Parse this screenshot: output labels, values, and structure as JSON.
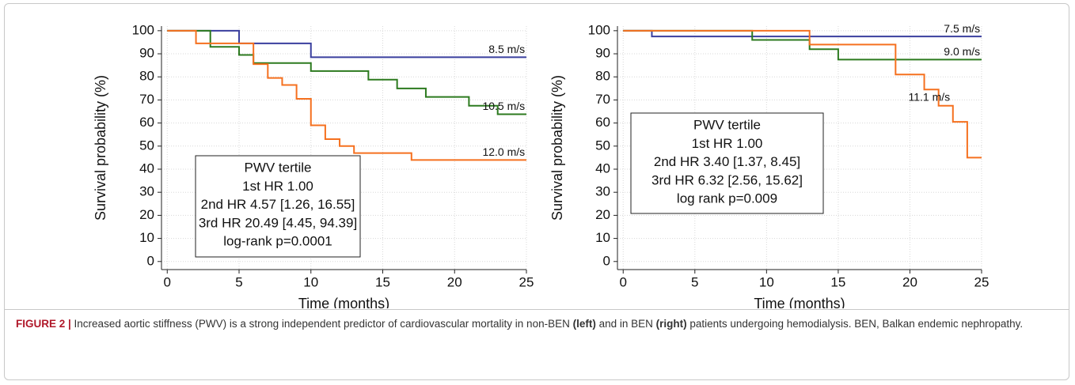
{
  "chart_data": [
    {
      "type": "line",
      "step": true,
      "xlabel": "Time (months)",
      "ylabel": "Survival probability (%)",
      "xlim": [
        -0.4,
        25
      ],
      "ylim": [
        -3.5,
        102
      ],
      "xticks": [
        0,
        5,
        10,
        15,
        20,
        25
      ],
      "yticks": [
        0,
        10,
        20,
        30,
        40,
        50,
        60,
        70,
        80,
        90,
        100
      ],
      "grid": true,
      "annotation": [
        "PWV tertile",
        "1st HR 1.00",
        "2nd HR 4.57 [1.26, 16.55]",
        "3rd HR 20.49 [4.45, 94.39]",
        "log-rank p=0.0001"
      ],
      "series": [
        {
          "name": "8.5 m/s",
          "color": "#3a3f9e",
          "x": [
            0,
            5,
            5,
            10,
            10,
            25
          ],
          "values": [
            100,
            100,
            94.5,
            94.5,
            88.5,
            88.5
          ]
        },
        {
          "name": "10.5 m/s",
          "color": "#2c7a1f",
          "x": [
            0,
            3,
            3,
            5,
            5,
            6,
            6,
            10,
            10,
            14,
            14,
            16,
            16,
            18,
            18,
            21,
            21,
            23,
            23,
            25
          ],
          "values": [
            100,
            100,
            93,
            93,
            89.5,
            89.5,
            86,
            86,
            82.5,
            82.5,
            78.8,
            78.8,
            75,
            75,
            71.3,
            71.3,
            67.5,
            67.5,
            63.8,
            63.8
          ]
        },
        {
          "name": "12.0 m/s",
          "color": "#f5701f",
          "x": [
            0,
            2,
            2,
            6,
            6,
            7,
            7,
            8,
            8,
            9,
            9,
            10,
            10,
            11,
            11,
            12,
            12,
            13,
            13,
            17,
            17,
            25
          ],
          "values": [
            100,
            100,
            94.5,
            94.5,
            85.5,
            85.5,
            79.5,
            79.5,
            76.5,
            76.5,
            70.5,
            70.5,
            59,
            59,
            53,
            53,
            50,
            50,
            47,
            47,
            44,
            44
          ]
        }
      ]
    },
    {
      "type": "line",
      "step": true,
      "xlabel": "Time (months)",
      "ylabel": "Survival probability (%)",
      "xlim": [
        -0.4,
        25
      ],
      "ylim": [
        -3.5,
        102
      ],
      "xticks": [
        0,
        5,
        10,
        15,
        20,
        25
      ],
      "yticks": [
        0,
        10,
        20,
        30,
        40,
        50,
        60,
        70,
        80,
        90,
        100
      ],
      "grid": true,
      "annotation": [
        "PWV tertile",
        "1st HR 1.00",
        "2nd HR 3.40 [1.37, 8.45]",
        "3rd HR 6.32 [2.56, 15.62]",
        "log rank p=0.009"
      ],
      "series": [
        {
          "name": "7.5 m/s",
          "color": "#3a3f9e",
          "x": [
            0,
            2,
            2,
            25
          ],
          "values": [
            100,
            100,
            97.5,
            97.5
          ]
        },
        {
          "name": "9.0 m/s",
          "color": "#2c7a1f",
          "x": [
            0,
            9,
            9,
            13,
            13,
            15,
            15,
            25
          ],
          "values": [
            100,
            100,
            96,
            96,
            92,
            92,
            87.5,
            87.5
          ]
        },
        {
          "name": "11.1 m/s",
          "color": "#f5701f",
          "x": [
            0,
            13,
            13,
            19,
            19,
            21,
            21,
            22,
            22,
            23,
            23,
            24,
            24,
            25
          ],
          "values": [
            100,
            100,
            94,
            94,
            81,
            81,
            74.5,
            74.5,
            67.5,
            67.5,
            60.5,
            60.5,
            45,
            45
          ]
        }
      ]
    }
  ],
  "caption": {
    "label": "FIGURE 2 |",
    "parts": [
      " Increased aortic stiffness (PWV) is a strong independent predictor of cardiovascular mortality in non-BEN ",
      "(left)",
      " and in BEN ",
      "(right)",
      " patients undergoing hemodialysis. BEN, Balkan endemic nephropathy."
    ]
  }
}
